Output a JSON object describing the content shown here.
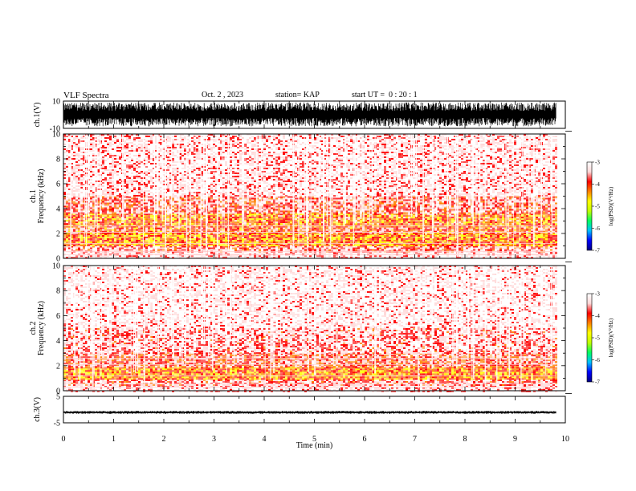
{
  "header": {
    "title": "VLF Spectra",
    "date": "Oct. 2 , 2023",
    "station": "station= KAP",
    "start": "start UT =  0 : 20 : 1"
  },
  "colors": {
    "waveform": "#000000",
    "spectrogram_background": "#ffffff"
  },
  "chart_data": [
    {
      "type": "line",
      "name": "waveform-ch1",
      "ylabel": "ch.1(V)",
      "ylim": [
        -10,
        10
      ],
      "yticks": [
        "10",
        "-10"
      ],
      "xlim": [
        0,
        10
      ],
      "xticks": [
        "0",
        "1",
        "2",
        "3",
        "4",
        "5",
        "6",
        "7",
        "8",
        "9",
        "10"
      ],
      "data_end_min": 9.82,
      "envelope_min": -8.5,
      "envelope_max": 9.0
    },
    {
      "type": "heatmap",
      "name": "spectrogram-ch1",
      "ylabel": "ch.1\nFrequency  (kHz)",
      "ylim": [
        0,
        10
      ],
      "yticks": [
        "0",
        "2",
        "4",
        "6",
        "8",
        "10"
      ],
      "xlim": [
        0,
        10
      ],
      "data_end_min": 9.82,
      "bands": [
        {
          "from_khz": 0.0,
          "to_khz": 0.5,
          "level": -3.3
        },
        {
          "from_khz": 0.5,
          "to_khz": 1.0,
          "level": -3.6
        },
        {
          "from_khz": 1.0,
          "to_khz": 2.0,
          "level": -4.3
        },
        {
          "from_khz": 2.0,
          "to_khz": 2.6,
          "level": -4.0
        },
        {
          "from_khz": 2.6,
          "to_khz": 3.6,
          "level": -4.2
        },
        {
          "from_khz": 3.6,
          "to_khz": 5.0,
          "level": -3.7
        },
        {
          "from_khz": 5.0,
          "to_khz": 10.0,
          "level": -3.3
        }
      ],
      "colorbar": {
        "label": "log(PSD)(V²/Hz)",
        "range": [
          -7,
          -3
        ],
        "ticks": [
          "-3",
          "-4",
          "-5",
          "-6",
          "-7"
        ],
        "colors": [
          "#000080",
          "#0000ff",
          "#00c0ff",
          "#00ff60",
          "#c0ff00",
          "#ffff00",
          "#ff8000",
          "#ff0000",
          "#ffd8d8",
          "#ffffff"
        ]
      }
    },
    {
      "type": "heatmap",
      "name": "spectrogram-ch2",
      "ylabel": "ch.2\nFrequency  (kHz)",
      "ylim": [
        0,
        10
      ],
      "yticks": [
        "0",
        "2",
        "4",
        "6",
        "8",
        "10"
      ],
      "xlim": [
        0,
        10
      ],
      "data_end_min": 9.82,
      "bands": [
        {
          "from_khz": 0.0,
          "to_khz": 0.4,
          "level": -3.3
        },
        {
          "from_khz": 0.4,
          "to_khz": 0.9,
          "level": -3.6
        },
        {
          "from_khz": 0.9,
          "to_khz": 1.9,
          "level": -4.3
        },
        {
          "from_khz": 1.9,
          "to_khz": 3.0,
          "level": -3.8
        },
        {
          "from_khz": 3.0,
          "to_khz": 5.0,
          "level": -3.5
        },
        {
          "from_khz": 5.0,
          "to_khz": 10.0,
          "level": -3.2
        }
      ],
      "colorbar": {
        "label": "log(PSD)(V²/Hz)",
        "range": [
          -7,
          -3
        ],
        "ticks": [
          "-3",
          "-4",
          "-5",
          "-6",
          "-7"
        ]
      }
    },
    {
      "type": "line",
      "name": "waveform-ch3",
      "ylabel": "ch.3(V)",
      "ylim": [
        -5,
        5
      ],
      "yticks": [
        "5",
        "-5"
      ],
      "xlim": [
        0,
        10
      ],
      "xticks": [
        "0",
        "1",
        "2",
        "3",
        "4",
        "5",
        "6",
        "7",
        "8",
        "9",
        "10"
      ],
      "xlabel": "Time  (min)",
      "data_end_min": 9.82,
      "envelope_min": -1.6,
      "envelope_max": -0.5
    }
  ]
}
